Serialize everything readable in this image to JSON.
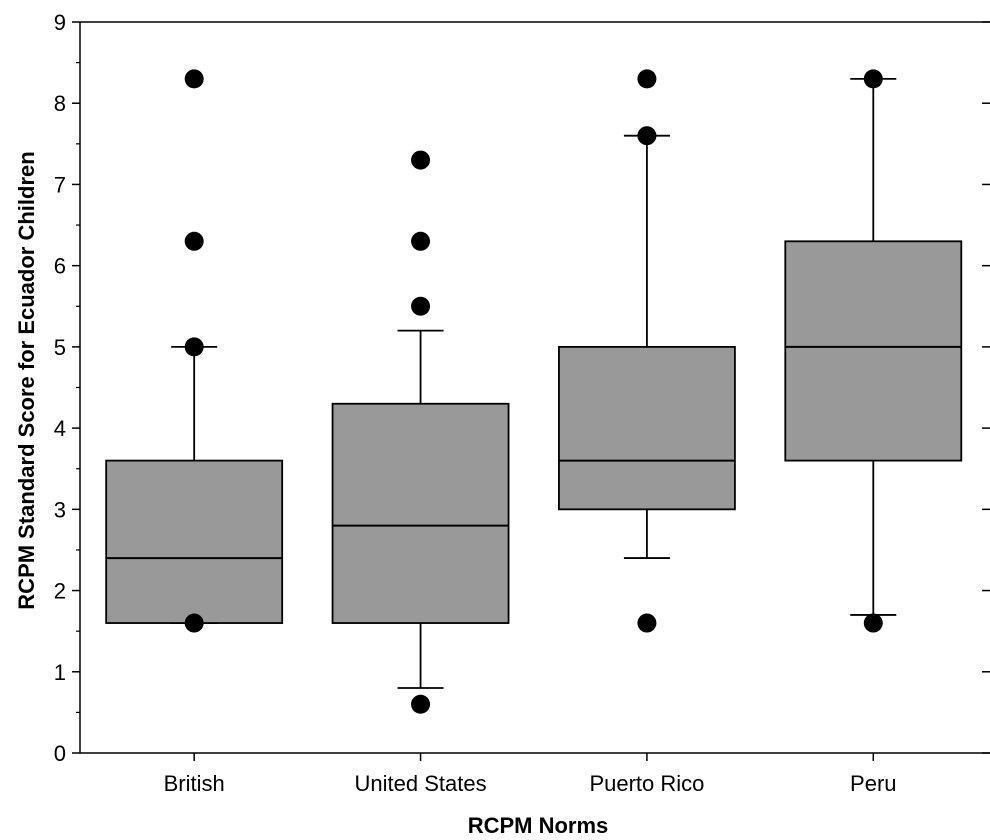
{
  "chart_data": {
    "type": "boxplot",
    "title": "",
    "xlabel": "RCPM Norms",
    "ylabel": "RCPM Standard Score for Ecuador Children",
    "ylim": [
      0,
      9
    ],
    "yticks": [
      0,
      1,
      2,
      3,
      4,
      5,
      6,
      7,
      8,
      9
    ],
    "grid": false,
    "legend": "none",
    "box_color": "#999999",
    "edge_color": "#000000",
    "categories": [
      "British",
      "United States",
      "Puerto Rico",
      "Peru"
    ],
    "boxes": [
      {
        "category": "British",
        "q1": 1.6,
        "median": 2.4,
        "q3": 3.6,
        "whisker_low": 1.6,
        "whisker_high": 5.0,
        "outliers": [
          1.6,
          5.0,
          6.3,
          8.3
        ]
      },
      {
        "category": "United States",
        "q1": 1.6,
        "median": 2.8,
        "q3": 4.3,
        "whisker_low": 0.8,
        "whisker_high": 5.2,
        "outliers": [
          0.6,
          5.5,
          6.3,
          7.3
        ]
      },
      {
        "category": "Puerto Rico",
        "q1": 3.0,
        "median": 3.6,
        "q3": 5.0,
        "whisker_low": 2.4,
        "whisker_high": 7.6,
        "outliers": [
          1.6,
          7.6,
          8.3
        ]
      },
      {
        "category": "Peru",
        "q1": 3.6,
        "median": 5.0,
        "q3": 6.3,
        "whisker_low": 1.7,
        "whisker_high": 8.3,
        "outliers": [
          1.6,
          8.3
        ]
      }
    ]
  }
}
